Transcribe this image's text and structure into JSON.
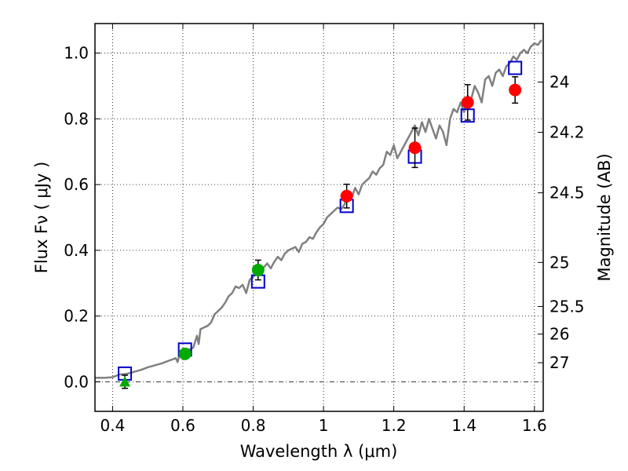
{
  "chart_data": {
    "type": "scatter",
    "title": "",
    "xlabel": "Wavelength  λ (μm)",
    "ylabel": "Flux  Fν  ( μJy )",
    "y2label": "Magnitude (AB)",
    "xlim": [
      0.35,
      1.625
    ],
    "ylim": [
      -0.09,
      1.09
    ],
    "grid": true,
    "x_ticks": [
      {
        "value": 0.4,
        "label": "0.4"
      },
      {
        "value": 0.6,
        "label": "0.6"
      },
      {
        "value": 0.8,
        "label": "0.8"
      },
      {
        "value": 1.0,
        "label": "1"
      },
      {
        "value": 1.2,
        "label": "1.2"
      },
      {
        "value": 1.4,
        "label": "1.4"
      },
      {
        "value": 1.6,
        "label": "1.6"
      }
    ],
    "y_ticks": [
      {
        "value": 0.0,
        "label": "0.0"
      },
      {
        "value": 0.2,
        "label": "0.2"
      },
      {
        "value": 0.4,
        "label": "0.4"
      },
      {
        "value": 0.6,
        "label": "0.6"
      },
      {
        "value": 0.8,
        "label": "0.8"
      },
      {
        "value": 1.0,
        "label": "1.0"
      }
    ],
    "y2_ticks": [
      {
        "flux": 0.912,
        "label": "24"
      },
      {
        "flux": 0.759,
        "label": "24.2"
      },
      {
        "flux": 0.575,
        "label": "24.5"
      },
      {
        "flux": 0.363,
        "label": "25"
      },
      {
        "flux": 0.229,
        "label": "25.5"
      },
      {
        "flux": 0.145,
        "label": "26"
      },
      {
        "flux": 0.058,
        "label": "27"
      }
    ],
    "series": [
      {
        "name": "model spectrum",
        "kind": "line",
        "color": "#808080",
        "x": [
          0.35,
          0.38,
          0.4,
          0.42,
          0.44,
          0.46,
          0.48,
          0.5,
          0.52,
          0.54,
          0.55,
          0.56,
          0.57,
          0.58,
          0.585,
          0.59,
          0.595,
          0.6,
          0.61,
          0.62,
          0.63,
          0.64,
          0.645,
          0.65,
          0.66,
          0.67,
          0.68,
          0.69,
          0.7,
          0.71,
          0.72,
          0.73,
          0.74,
          0.75,
          0.76,
          0.77,
          0.78,
          0.79,
          0.8,
          0.81,
          0.82,
          0.83,
          0.84,
          0.85,
          0.86,
          0.87,
          0.88,
          0.89,
          0.9,
          0.91,
          0.92,
          0.93,
          0.94,
          0.95,
          0.96,
          0.97,
          0.98,
          0.99,
          1.0,
          1.01,
          1.02,
          1.03,
          1.04,
          1.05,
          1.06,
          1.07,
          1.08,
          1.09,
          1.1,
          1.11,
          1.12,
          1.13,
          1.14,
          1.15,
          1.16,
          1.17,
          1.18,
          1.19,
          1.2,
          1.21,
          1.22,
          1.23,
          1.24,
          1.25,
          1.26,
          1.27,
          1.28,
          1.29,
          1.3,
          1.31,
          1.32,
          1.33,
          1.34,
          1.35,
          1.36,
          1.37,
          1.38,
          1.39,
          1.4,
          1.41,
          1.42,
          1.43,
          1.44,
          1.45,
          1.46,
          1.47,
          1.48,
          1.49,
          1.5,
          1.51,
          1.52,
          1.53,
          1.54,
          1.55,
          1.56,
          1.57,
          1.58,
          1.59,
          1.6,
          1.61,
          1.62
        ],
        "y": [
          0.012,
          0.012,
          0.014,
          0.022,
          0.024,
          0.03,
          0.036,
          0.044,
          0.05,
          0.056,
          0.06,
          0.064,
          0.068,
          0.072,
          0.06,
          0.08,
          0.09,
          0.085,
          0.1,
          0.098,
          0.105,
          0.14,
          0.115,
          0.16,
          0.165,
          0.17,
          0.18,
          0.205,
          0.215,
          0.225,
          0.24,
          0.26,
          0.27,
          0.29,
          0.285,
          0.295,
          0.27,
          0.31,
          0.32,
          0.33,
          0.35,
          0.348,
          0.36,
          0.345,
          0.365,
          0.38,
          0.37,
          0.39,
          0.4,
          0.405,
          0.41,
          0.395,
          0.42,
          0.425,
          0.44,
          0.435,
          0.455,
          0.47,
          0.48,
          0.5,
          0.51,
          0.52,
          0.53,
          0.525,
          0.54,
          0.58,
          0.56,
          0.59,
          0.57,
          0.6,
          0.61,
          0.62,
          0.64,
          0.63,
          0.65,
          0.66,
          0.7,
          0.69,
          0.72,
          0.68,
          0.7,
          0.72,
          0.74,
          0.76,
          0.78,
          0.75,
          0.79,
          0.76,
          0.8,
          0.77,
          0.74,
          0.78,
          0.76,
          0.72,
          0.8,
          0.83,
          0.82,
          0.85,
          0.82,
          0.87,
          0.86,
          0.9,
          0.88,
          0.85,
          0.92,
          0.93,
          0.9,
          0.94,
          0.95,
          0.93,
          0.96,
          0.97,
          0.99,
          0.98,
          1.0,
          1.01,
          1.0,
          1.02,
          1.03,
          1.025,
          1.04
        ]
      },
      {
        "name": "model broadband",
        "kind": "open-square",
        "color": "#0000cc",
        "x": [
          0.435,
          0.606,
          0.814,
          1.066,
          1.26,
          1.41,
          1.545
        ],
        "y": [
          0.025,
          0.098,
          0.305,
          0.535,
          0.685,
          0.81,
          0.955
        ]
      },
      {
        "name": "observed (green)",
        "kind": "filled-circle",
        "color": "#00aa00",
        "x": [
          0.606,
          0.814
        ],
        "y": [
          0.085,
          0.34
        ],
        "err": [
          0.012,
          0.03
        ]
      },
      {
        "name": "upper limit",
        "kind": "filled-triangle",
        "color": "#00aa00",
        "x": [
          0.435
        ],
        "y": [
          0.0
        ],
        "err": [
          0.02
        ]
      },
      {
        "name": "observed (red)",
        "kind": "filled-circle",
        "color": "#ff0000",
        "x": [
          1.066,
          1.26,
          1.41,
          1.545
        ],
        "y": [
          0.565,
          0.712,
          0.85,
          0.888
        ],
        "err": [
          0.036,
          0.06,
          0.054,
          0.04
        ]
      }
    ]
  }
}
